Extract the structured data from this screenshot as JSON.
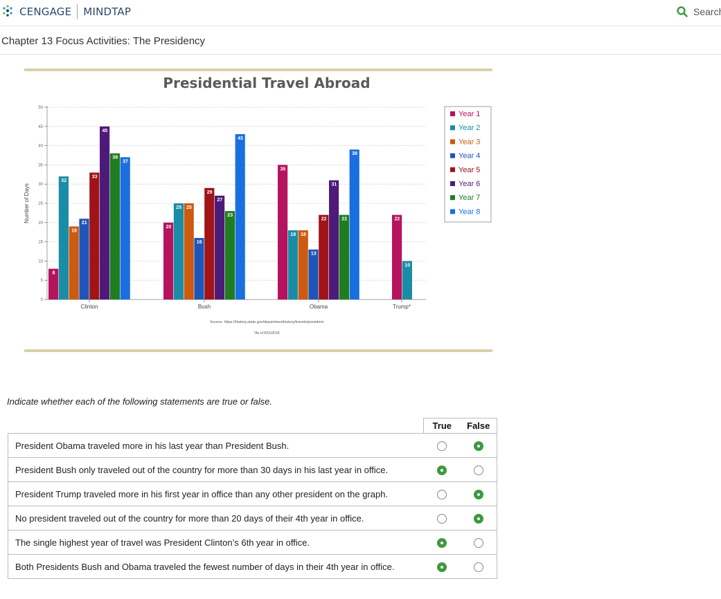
{
  "header": {
    "brand": "CENGAGE",
    "product": "MINDTAP",
    "search_label": "Search"
  },
  "page": {
    "title": "Chapter 13 Focus Activities: The Presidency"
  },
  "chart_data": {
    "type": "bar",
    "title": "Presidential Travel Abroad",
    "ylabel": "Number of Days",
    "xlabel": "",
    "ylim": [
      0,
      50
    ],
    "yticks": [
      0,
      5,
      10,
      15,
      20,
      25,
      30,
      35,
      40,
      45,
      50
    ],
    "legend_position": "top-right",
    "source": "Source: https://history.state.gov/departmenthistory/travels/president",
    "footnote": "*As of 8/15/2018",
    "groups": [
      {
        "label": "Clinton",
        "values": [
          8,
          32,
          19,
          21,
          33,
          45,
          38,
          37
        ]
      },
      {
        "label": "Bush",
        "values": [
          20,
          25,
          25,
          16,
          29,
          27,
          23,
          43
        ]
      },
      {
        "label": "Obama",
        "values": [
          35,
          18,
          18,
          13,
          22,
          31,
          22,
          39
        ]
      },
      {
        "label": "Trump*",
        "values": [
          22,
          10
        ]
      }
    ],
    "series": [
      {
        "name": "Year 1",
        "color": "#b5135e"
      },
      {
        "name": "Year 2",
        "color": "#1a8da6"
      },
      {
        "name": "Year 3",
        "color": "#cc5a10"
      },
      {
        "name": "Year 4",
        "color": "#1f55b8"
      },
      {
        "name": "Year 5",
        "color": "#a01316"
      },
      {
        "name": "Year 6",
        "color": "#4e1a7a"
      },
      {
        "name": "Year 7",
        "color": "#1f7d1f"
      },
      {
        "name": "Year 8",
        "color": "#1a6fe0"
      }
    ]
  },
  "question": {
    "prompt": "Indicate whether each of the following statements are true or false.",
    "col_true": "True",
    "col_false": "False",
    "rows": [
      {
        "statement": "President Obama traveled more in his last year than President Bush.",
        "answer": "false"
      },
      {
        "statement": "President Bush only traveled out of the country for more than 30 days in his last year in office.",
        "answer": "true"
      },
      {
        "statement": "President Trump traveled more in his first year in office than any other president on the graph.",
        "answer": "false"
      },
      {
        "statement": "No president traveled out of the country for more than 20 days of their 4th year in office.",
        "answer": "false"
      },
      {
        "statement": "The single highest year of travel was President Clinton’s 6th year in office.",
        "answer": "true"
      },
      {
        "statement": "Both Presidents Bush and Obama traveled the fewest number of days in their 4th year in office.",
        "answer": "true"
      }
    ]
  }
}
